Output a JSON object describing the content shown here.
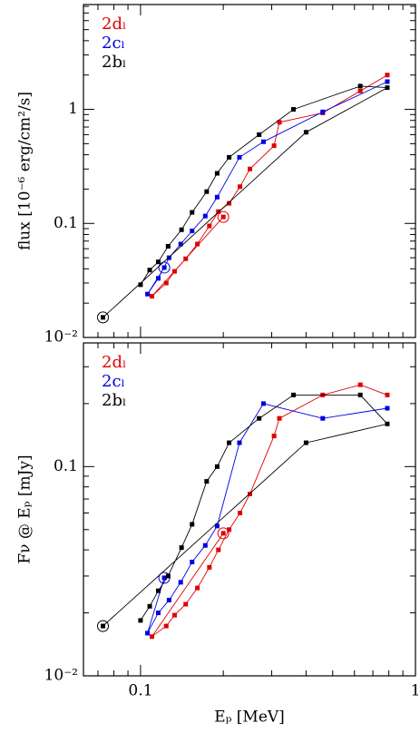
{
  "chart_data": [
    {
      "type": "line",
      "ylabel": "flux [10⁻⁶ erg/cm²/s]",
      "log_x": true,
      "log_y": true,
      "circle_first_point": true,
      "xlim": [
        0.062,
        1
      ],
      "ylim": [
        0.01,
        8.3
      ],
      "yticks": [
        {
          "value": 0.01,
          "label": "10⁻²"
        },
        0.1,
        1
      ],
      "yminorticks": [
        0.02,
        0.03,
        0.04,
        0.05,
        0.06,
        0.07,
        0.08,
        0.09,
        0.2,
        0.3,
        0.4,
        0.5,
        0.6,
        0.7,
        0.8,
        0.9,
        2,
        3,
        4,
        5,
        6,
        7,
        8
      ],
      "series": [
        {
          "name": "2dₗ",
          "color": "#e00000",
          "x": [
            0.2,
            0.11,
            0.124,
            0.133,
            0.146,
            0.161,
            0.178,
            0.192,
            0.21,
            0.23,
            0.25,
            0.306,
            0.32,
            0.46,
            0.63,
            0.79
          ],
          "values": [
            0.114,
            0.023,
            0.03,
            0.038,
            0.049,
            0.066,
            0.095,
            0.127,
            0.15,
            0.21,
            0.3,
            0.48,
            0.77,
            0.93,
            1.45,
            2.0
          ]
        },
        {
          "name": "2cₗ",
          "color": "#0000e0",
          "x": [
            0.122,
            0.106,
            0.116,
            0.127,
            0.14,
            0.154,
            0.172,
            0.19,
            0.229,
            0.28,
            0.46,
            0.79
          ],
          "values": [
            0.041,
            0.024,
            0.033,
            0.05,
            0.066,
            0.086,
            0.116,
            0.17,
            0.38,
            0.52,
            0.95,
            1.75
          ]
        },
        {
          "name": "2bₗ",
          "color": "#000000",
          "x": [
            0.073,
            0.4,
            0.79,
            0.63,
            0.36,
            0.27,
            0.21,
            0.19,
            0.174,
            0.154,
            0.141,
            0.126,
            0.116,
            0.108,
            0.1
          ],
          "values": [
            0.015,
            0.63,
            1.55,
            1.6,
            1.0,
            0.6,
            0.38,
            0.275,
            0.19,
            0.125,
            0.088,
            0.063,
            0.046,
            0.039,
            0.029
          ]
        }
      ]
    },
    {
      "type": "line",
      "ylabel": "Fν @ Eₚ [mJy]",
      "xlabel": "Eₚ [MeV]",
      "log_x": true,
      "log_y": true,
      "circle_first_point": true,
      "xlim": [
        0.062,
        1
      ],
      "ylim": [
        0.01,
        0.39
      ],
      "xticks": [
        0.1,
        1
      ],
      "xminorticks": [
        0.07,
        0.08,
        0.09,
        0.2,
        0.3,
        0.4,
        0.5,
        0.6,
        0.7,
        0.8,
        0.9
      ],
      "yticks": [
        {
          "value": 0.01,
          "label": "10⁻²"
        },
        0.1
      ],
      "yminorticks": [
        0.02,
        0.03,
        0.04,
        0.05,
        0.06,
        0.07,
        0.08,
        0.09,
        0.2,
        0.3
      ],
      "series": [
        {
          "name": "2dₗ",
          "color": "#e00000",
          "x": [
            0.2,
            0.11,
            0.124,
            0.133,
            0.146,
            0.161,
            0.178,
            0.192,
            0.21,
            0.23,
            0.25,
            0.306,
            0.32,
            0.46,
            0.63,
            0.79
          ],
          "values": [
            0.048,
            0.0154,
            0.0173,
            0.0195,
            0.022,
            0.0263,
            0.033,
            0.04,
            0.05,
            0.06,
            0.074,
            0.14,
            0.17,
            0.22,
            0.246,
            0.22
          ]
        },
        {
          "name": "2cₗ",
          "color": "#0000e0",
          "x": [
            0.122,
            0.106,
            0.116,
            0.127,
            0.14,
            0.154,
            0.172,
            0.19,
            0.229,
            0.28,
            0.46,
            0.79
          ],
          "values": [
            0.0294,
            0.016,
            0.02,
            0.023,
            0.028,
            0.035,
            0.042,
            0.052,
            0.13,
            0.2,
            0.17,
            0.19
          ]
        },
        {
          "name": "2bₗ",
          "color": "#000000",
          "x": [
            0.073,
            0.4,
            0.79,
            0.63,
            0.36,
            0.27,
            0.21,
            0.19,
            0.174,
            0.154,
            0.141,
            0.126,
            0.116,
            0.108,
            0.1
          ],
          "values": [
            0.0173,
            0.13,
            0.16,
            0.22,
            0.22,
            0.17,
            0.13,
            0.1,
            0.085,
            0.053,
            0.041,
            0.03,
            0.0255,
            0.0215,
            0.0184
          ]
        }
      ]
    }
  ]
}
